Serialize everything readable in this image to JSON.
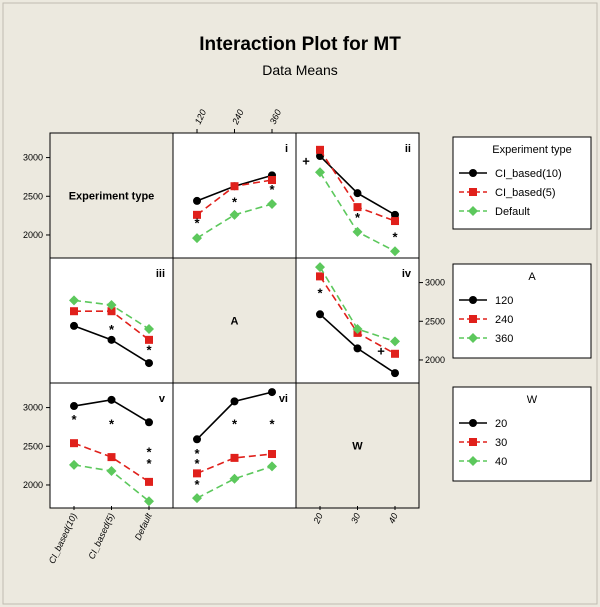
{
  "title": "Interaction Plot for MT",
  "subtitle": "Data Means",
  "colors": {
    "background": "#ece9df",
    "panel": "#ffffff",
    "diag": "#ece9df",
    "black": "#000000",
    "red": "#e0201b",
    "green": "#5cc85c"
  },
  "chart_data": {
    "type": "line",
    "factors": {
      "experiment_type": {
        "label": "Experiment type",
        "levels": [
          "CI_based(10)",
          "CI_based(5)",
          "Default"
        ]
      },
      "A": {
        "label": "A",
        "levels": [
          "120",
          "240",
          "360"
        ]
      },
      "W": {
        "label": "W",
        "levels": [
          "20",
          "30",
          "40"
        ]
      }
    },
    "yticks": {
      "left": [
        "3000",
        "2500",
        "2000"
      ],
      "right": [
        "3000",
        "2500",
        "2000"
      ]
    },
    "top_ticks": [
      "120",
      "240",
      "360"
    ],
    "bottom_ticks_W": [
      "20",
      "30",
      "40"
    ],
    "bottom_ticks_experiment": [
      "CI_based(10)",
      "CI_based(5)",
      "Default"
    ],
    "ylim": [
      1780,
      3240
    ],
    "panels": [
      {
        "id": "i",
        "x_factor": "A",
        "line_factor": "Experiment type",
        "series": [
          {
            "name": "CI_based(10)",
            "values": [
              2440,
              2630,
              2770
            ]
          },
          {
            "name": "CI_based(5)",
            "values": [
              2260,
              2630,
              2710
            ]
          },
          {
            "name": "Default",
            "values": [
              1960,
              2260,
              2400
            ]
          }
        ],
        "markers": [
          {
            "symbol": "*",
            "x": 0,
            "y": 2150
          },
          {
            "symbol": "*",
            "x": 1,
            "y": 2420
          },
          {
            "symbol": "*",
            "x": 2,
            "y": 2580
          }
        ]
      },
      {
        "id": "ii",
        "x_factor": "W",
        "line_factor": "Experiment type",
        "series": [
          {
            "name": "CI_based(10)",
            "values": [
              3020,
              2540,
              2260
            ]
          },
          {
            "name": "CI_based(5)",
            "values": [
              3100,
              2360,
              2180
            ]
          },
          {
            "name": "Default",
            "values": [
              2810,
              2040,
              1790
            ]
          }
        ],
        "markers": [
          {
            "symbol": "+",
            "x": 0,
            "y": 2950
          },
          {
            "symbol": "*",
            "x": 1,
            "y": 2220
          },
          {
            "symbol": "*",
            "x": 2,
            "y": 1970
          }
        ]
      },
      {
        "id": "iii",
        "x_factor": "Experiment type",
        "line_factor": "A",
        "series": [
          {
            "name": "120",
            "values": [
              2440,
              2260,
              1960
            ]
          },
          {
            "name": "240",
            "values": [
              2630,
              2630,
              2260
            ]
          },
          {
            "name": "360",
            "values": [
              2770,
              2710,
              2400
            ]
          }
        ],
        "markers": [
          {
            "symbol": "*",
            "x": 1,
            "y": 2390
          },
          {
            "symbol": "*",
            "x": 2,
            "y": 2120
          }
        ]
      },
      {
        "id": "iv",
        "x_factor": "W",
        "line_factor": "A",
        "series": [
          {
            "name": "120",
            "values": [
              2590,
              2150,
              1830
            ]
          },
          {
            "name": "240",
            "values": [
              3080,
              2350,
              2080
            ]
          },
          {
            "name": "360",
            "values": [
              3200,
              2400,
              2240
            ]
          }
        ],
        "markers": [
          {
            "symbol": "*",
            "x": 0,
            "y": 2860
          },
          {
            "symbol": "+",
            "x": 2,
            "y": 2110
          }
        ]
      },
      {
        "id": "v",
        "x_factor": "Experiment type",
        "line_factor": "W",
        "series": [
          {
            "name": "20",
            "values": [
              3020,
              3100,
              2810
            ]
          },
          {
            "name": "30",
            "values": [
              2540,
              2360,
              2040
            ]
          },
          {
            "name": "40",
            "values": [
              2260,
              2180,
              1790
            ]
          }
        ],
        "markers": [
          {
            "symbol": "*",
            "x": 0,
            "y": 2840
          },
          {
            "symbol": "*",
            "x": 1,
            "y": 2780
          },
          {
            "symbol": "*",
            "x": 2,
            "y": 2420
          },
          {
            "symbol": "*",
            "x": 2,
            "y": 2270
          }
        ]
      },
      {
        "id": "vi",
        "x_factor": "A",
        "line_factor": "W",
        "series": [
          {
            "name": "20",
            "values": [
              2590,
              3080,
              3200
            ]
          },
          {
            "name": "30",
            "values": [
              2150,
              2350,
              2400
            ]
          },
          {
            "name": "40",
            "values": [
              1830,
              2080,
              2240
            ]
          }
        ],
        "markers": [
          {
            "symbol": "*",
            "x": 0,
            "y": 2400
          },
          {
            "symbol": "*",
            "x": 0,
            "y": 2270
          },
          {
            "symbol": "*",
            "x": 0,
            "y": 2000
          },
          {
            "symbol": "*",
            "x": 1,
            "y": 2780
          },
          {
            "symbol": "*",
            "x": 2,
            "y": 2780
          }
        ]
      }
    ],
    "legends": [
      {
        "title": "Experiment type",
        "entries": [
          "CI_based(10)",
          "CI_based(5)",
          "Default"
        ]
      },
      {
        "title": "A",
        "entries": [
          "120",
          "240",
          "360"
        ]
      },
      {
        "title": "W",
        "entries": [
          "20",
          "30",
          "40"
        ]
      }
    ]
  }
}
